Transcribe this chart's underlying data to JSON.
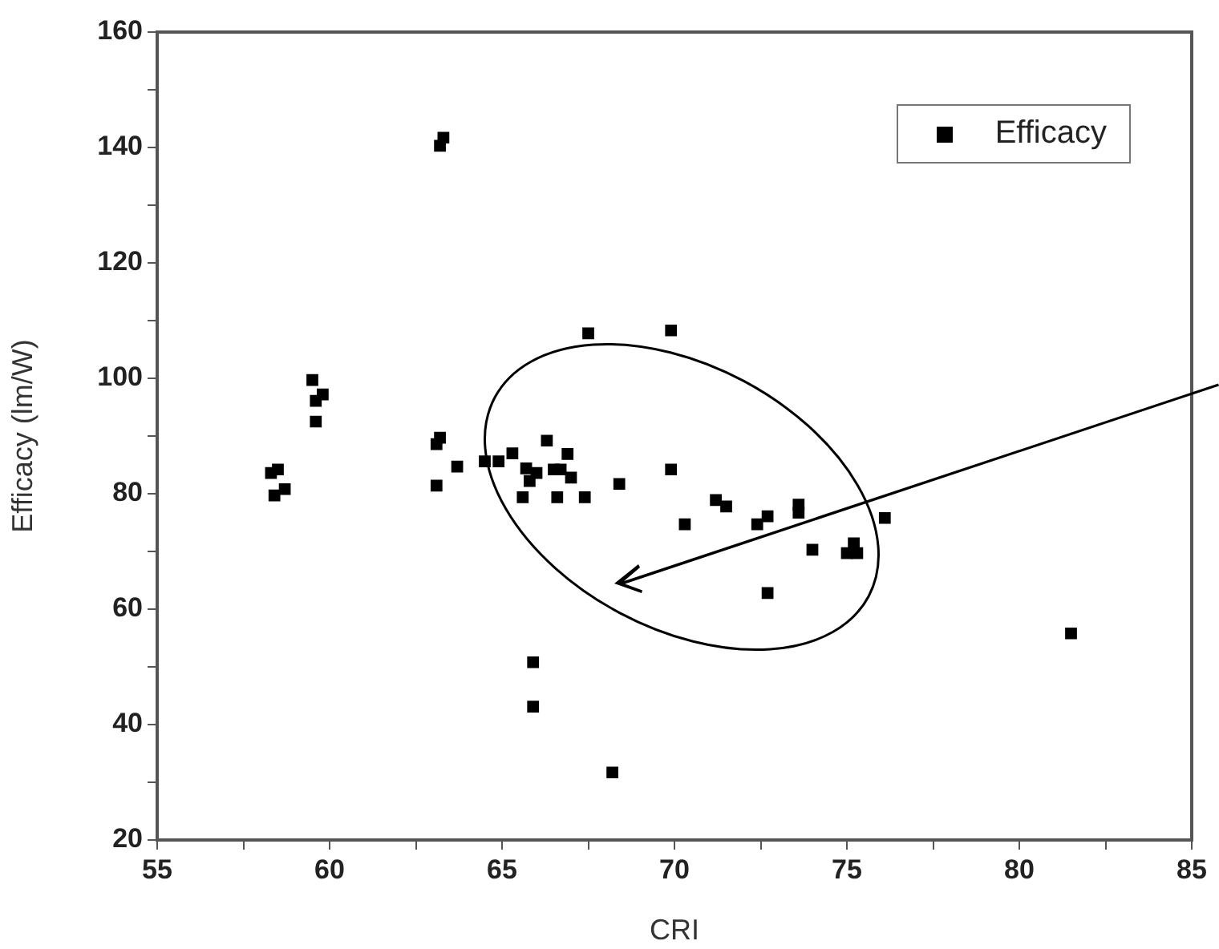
{
  "chart_data": {
    "type": "scatter",
    "xlabel": "CRI",
    "ylabel": "Efficacy (lm/W)",
    "xlim": [
      55,
      85
    ],
    "ylim": [
      20,
      160
    ],
    "xticks": [
      55,
      {
        "value": 57.5,
        "label": null
      },
      60,
      {
        "value": 62.5,
        "label": null
      },
      65,
      {
        "value": 67.5,
        "label": null
      },
      70,
      {
        "value": 72.5,
        "label": null
      },
      75,
      {
        "value": 77.5,
        "label": null
      },
      80,
      {
        "value": 82.5,
        "label": null
      },
      85
    ],
    "yticks": [
      20,
      {
        "value": 30,
        "label": null
      },
      40,
      {
        "value": 50,
        "label": null
      },
      60,
      {
        "value": 70,
        "label": null
      },
      80,
      {
        "value": 90,
        "label": null
      },
      100,
      {
        "value": 110,
        "label": null
      },
      120,
      {
        "value": 130,
        "label": null
      },
      140,
      {
        "value": 150,
        "label": null
      },
      160
    ],
    "grid": false,
    "legend": "top right",
    "marker": "square",
    "series": [
      {
        "name": "Efficacy",
        "color": "#000000",
        "x": [
          58.3,
          58.5,
          58.4,
          58.7,
          59.5,
          59.6,
          59.8,
          59.6,
          63.3,
          63.2,
          63.1,
          63.2,
          63.1,
          63.7,
          64.5,
          64.9,
          65.3,
          65.7,
          65.6,
          66.3,
          66.6,
          66.9,
          67.0,
          67.4,
          66.0,
          66.7,
          65.8,
          66.5,
          68.4,
          69.9,
          70.3,
          71.2,
          71.5,
          72.4,
          72.7,
          73.6,
          73.6,
          74.0,
          75.0,
          75.2,
          75.3,
          76.1,
          72.7,
          65.9,
          65.9,
          68.2,
          67.5,
          69.9,
          81.5
        ],
        "values": [
          83.6,
          84.2,
          79.7,
          80.8,
          99.7,
          96.1,
          97.2,
          92.5,
          141.7,
          140.3,
          88.6,
          89.7,
          81.4,
          84.7,
          85.6,
          85.6,
          87,
          84.4,
          79.4,
          89.2,
          79.4,
          86.9,
          82.8,
          79.4,
          83.6,
          84.2,
          82.2,
          84.2,
          81.7,
          84.2,
          74.7,
          78.9,
          77.8,
          74.7,
          76.1,
          78.1,
          76.7,
          70.3,
          69.7,
          71.4,
          69.7,
          75.8,
          62.8,
          50.8,
          43.1,
          31.7,
          107.8,
          108.3,
          55.8
        ]
      }
    ]
  }
}
